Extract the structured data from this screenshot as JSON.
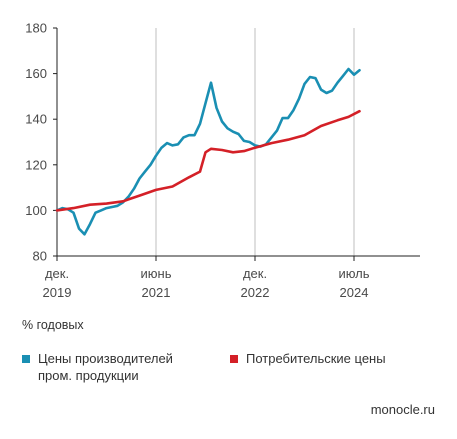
{
  "chart_data": {
    "type": "line",
    "title": "",
    "unit_note": "% годовых",
    "ylim": [
      80,
      180
    ],
    "yticks": [
      80,
      100,
      120,
      140,
      160,
      180
    ],
    "xlim": [
      0,
      66
    ],
    "x_ticks": [
      {
        "x": 0,
        "line1": "дек.",
        "line2": "2019"
      },
      {
        "x": 18,
        "line1": "июнь",
        "line2": "2021"
      },
      {
        "x": 36,
        "line1": "дек.",
        "line2": "2022"
      },
      {
        "x": 54,
        "line1": "июль",
        "line2": "2024"
      }
    ],
    "grid": "vertical",
    "legend_position": "bottom",
    "series": [
      {
        "name_lines": [
          "Цены производителей",
          "пром. продукции"
        ],
        "color": "#1a8fb3",
        "points": [
          [
            0,
            100
          ],
          [
            1,
            101
          ],
          [
            2,
            100.5
          ],
          [
            3,
            99
          ],
          [
            4,
            92
          ],
          [
            5,
            89.5
          ],
          [
            6,
            94
          ],
          [
            7,
            99
          ],
          [
            8,
            100
          ],
          [
            9,
            101
          ],
          [
            10,
            101.5
          ],
          [
            11,
            102
          ],
          [
            12,
            103.5
          ],
          [
            13,
            106
          ],
          [
            14,
            109.5
          ],
          [
            15,
            114
          ],
          [
            16,
            117
          ],
          [
            17,
            120
          ],
          [
            18,
            124
          ],
          [
            19,
            127.5
          ],
          [
            20,
            129.5
          ],
          [
            21,
            128.5
          ],
          [
            22,
            129
          ],
          [
            23,
            132
          ],
          [
            24,
            133
          ],
          [
            25,
            133
          ],
          [
            26,
            138
          ],
          [
            27,
            147
          ],
          [
            28,
            156
          ],
          [
            29,
            145
          ],
          [
            30,
            139
          ],
          [
            31,
            136
          ],
          [
            32,
            134.5
          ],
          [
            33,
            133.5
          ],
          [
            34,
            130.5
          ],
          [
            35,
            130
          ],
          [
            36,
            128.5
          ],
          [
            37,
            128
          ],
          [
            38,
            129
          ],
          [
            39,
            132
          ],
          [
            40,
            135
          ],
          [
            41,
            140.5
          ],
          [
            42,
            140.5
          ],
          [
            43,
            144
          ],
          [
            44,
            149
          ],
          [
            45,
            155.5
          ],
          [
            46,
            158.5
          ],
          [
            47,
            158
          ],
          [
            48,
            153
          ],
          [
            49,
            151.5
          ],
          [
            50,
            152.5
          ],
          [
            51,
            156
          ],
          [
            52,
            159
          ],
          [
            53,
            162
          ],
          [
            54,
            159.5
          ],
          [
            55,
            161.5
          ]
        ]
      },
      {
        "name_lines": [
          "Потребительские цены"
        ],
        "color": "#d42027",
        "points": [
          [
            0,
            100
          ],
          [
            3,
            101
          ],
          [
            6,
            102.5
          ],
          [
            9,
            103
          ],
          [
            12,
            104
          ],
          [
            15,
            106.5
          ],
          [
            18,
            109
          ],
          [
            21,
            110.5
          ],
          [
            24,
            114.5
          ],
          [
            26,
            117
          ],
          [
            27,
            125.5
          ],
          [
            28,
            127
          ],
          [
            30,
            126.5
          ],
          [
            32,
            125.5
          ],
          [
            34,
            126
          ],
          [
            36,
            127.5
          ],
          [
            39,
            129.5
          ],
          [
            42,
            131
          ],
          [
            45,
            133
          ],
          [
            48,
            137
          ],
          [
            51,
            139.5
          ],
          [
            53,
            141
          ],
          [
            55,
            143.5
          ]
        ]
      }
    ]
  },
  "source": "monocle.ru"
}
